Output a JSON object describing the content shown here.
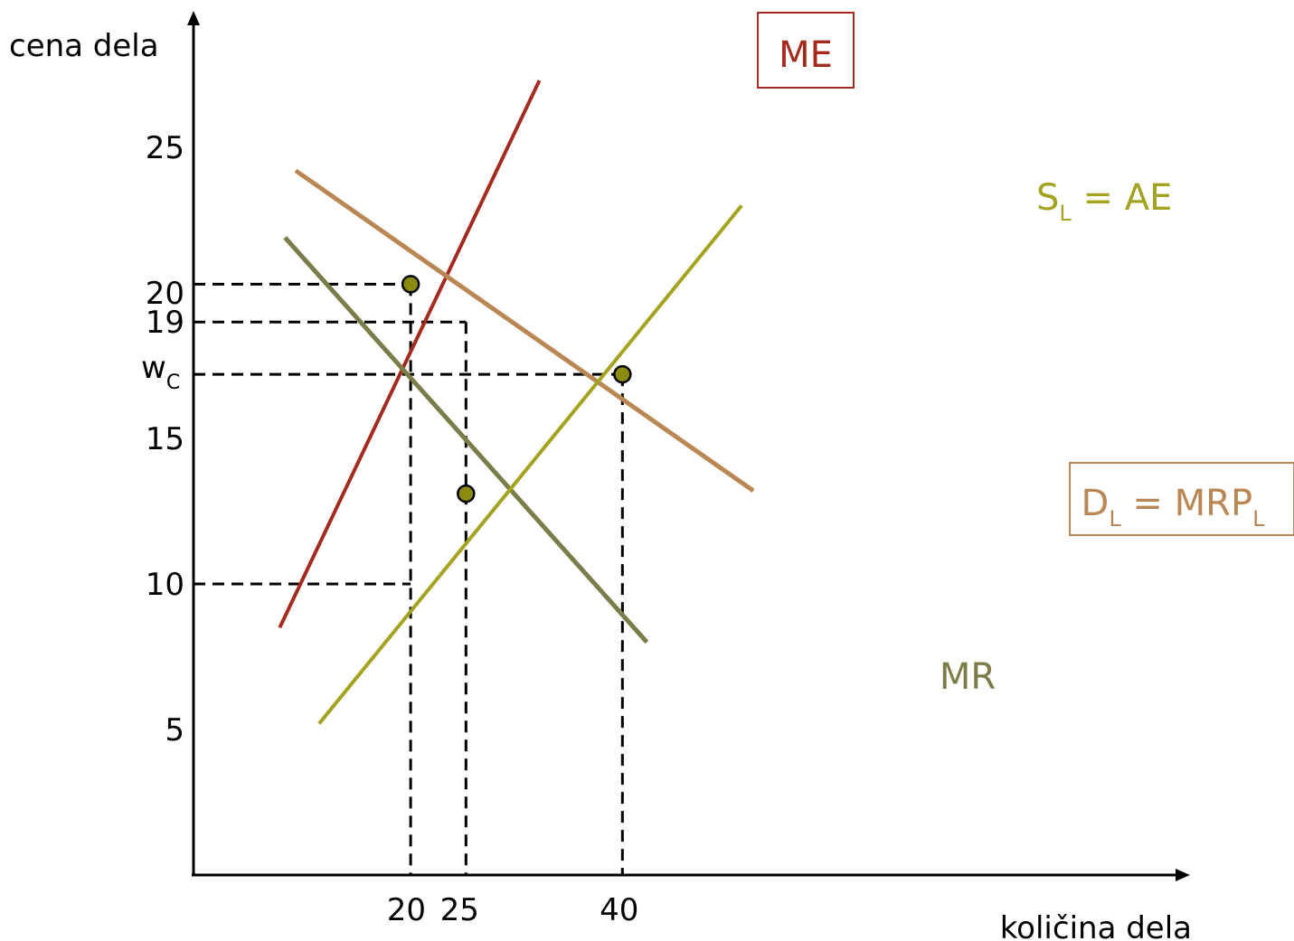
{
  "chart_data": {
    "type": "line",
    "title": "",
    "ylabel": "cena dela",
    "xlabel": "količina dela",
    "y_ticks": [
      {
        "value": 25,
        "label": "25"
      },
      {
        "value": 20,
        "label": "20"
      },
      {
        "value": 19,
        "label": "19"
      },
      {
        "value": 15,
        "label": "15"
      },
      {
        "value": 10,
        "label": "10"
      },
      {
        "value": 5,
        "label": "5"
      }
    ],
    "wc_label": {
      "main": "w",
      "sub": "C"
    },
    "wc_value": 17.2,
    "x_ticks": [
      {
        "value": 20,
        "label": "20"
      },
      {
        "value": 25,
        "label": "25"
      },
      {
        "value": 40,
        "label": "40"
      }
    ],
    "ylim": [
      0,
      29
    ],
    "xlim": [
      0,
      57
    ],
    "series": [
      {
        "key": "ME",
        "label": {
          "parts": [
            {
              "t": "ME"
            }
          ]
        },
        "color": "#a52a1e",
        "width": 4,
        "boxed": true,
        "points": [
          [
            8.1,
            8.5
          ],
          [
            32.5,
            27.3
          ]
        ]
      },
      {
        "key": "DL",
        "label": {
          "parts": [
            {
              "t": "D"
            },
            {
              "t": "L",
              "sub": true
            },
            {
              "t": " = MRP"
            },
            {
              "t": "L",
              "sub": true
            }
          ]
        },
        "color": "#b98654",
        "width": 5,
        "boxed": true,
        "points": [
          [
            9.6,
            24.2
          ],
          [
            52.6,
            13.2
          ]
        ]
      },
      {
        "key": "MR",
        "label": {
          "parts": [
            {
              "t": "MR"
            }
          ]
        },
        "color": "#7c7c4a",
        "width": 5,
        "boxed": false,
        "points": [
          [
            8.6,
            21.9
          ],
          [
            42.6,
            8.0
          ]
        ]
      },
      {
        "key": "SL",
        "label": {
          "parts": [
            {
              "t": "S"
            },
            {
              "t": "L",
              "sub": true
            },
            {
              "t": " = AE"
            }
          ]
        },
        "color": "#a3a320",
        "width": 4,
        "boxed": false,
        "points": [
          [
            11.8,
            5.2
          ],
          [
            51.5,
            23.0
          ]
        ]
      }
    ],
    "points": [
      {
        "x": 20.4,
        "y": 20.3
      },
      {
        "x": 40.3,
        "y": 17.2
      },
      {
        "x": 25.6,
        "y": 13.1
      }
    ],
    "guides": [
      {
        "y": 20.3,
        "x_end": 20.4,
        "vertical": true
      },
      {
        "y": 19,
        "x_end": 25.6,
        "vertical": true
      },
      {
        "y": 17.2,
        "x_end": 40.3,
        "vertical": true
      },
      {
        "y": 10,
        "x_end": 20.4,
        "vertical": false
      }
    ],
    "grid": false,
    "legend": "none"
  }
}
